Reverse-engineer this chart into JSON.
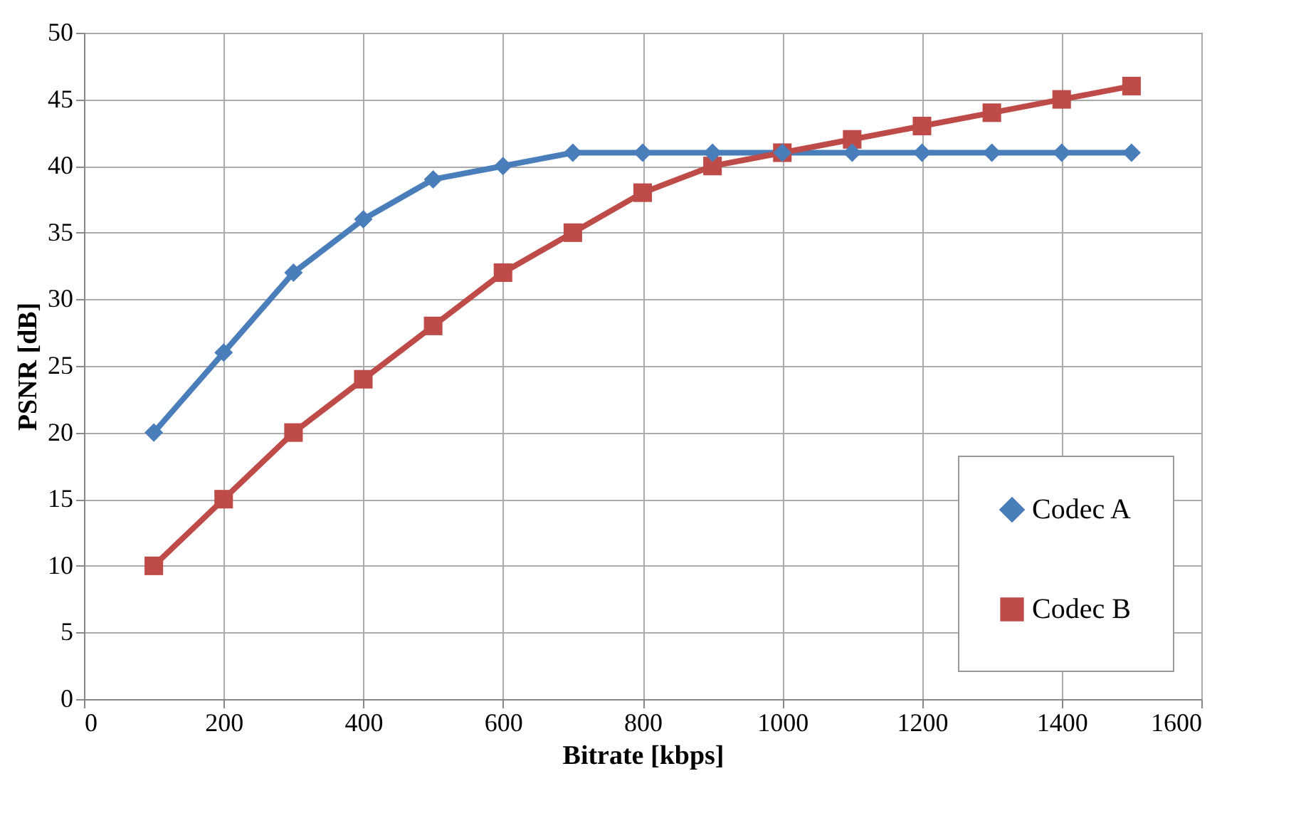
{
  "chart_data": {
    "type": "line",
    "xlabel": "Bitrate [kbps]",
    "ylabel": "PSNR [dB]",
    "x": [
      100,
      200,
      300,
      400,
      500,
      600,
      700,
      800,
      900,
      1000,
      1100,
      1200,
      1300,
      1400,
      1500
    ],
    "series": [
      {
        "name": "Codec A",
        "color": "#4a7ebb",
        "marker": "diamond",
        "values": [
          20,
          26,
          32,
          36,
          39,
          40,
          41,
          41,
          41,
          41,
          41,
          41,
          41,
          41,
          41
        ]
      },
      {
        "name": "Codec B",
        "color": "#be4b48",
        "marker": "square",
        "values": [
          10,
          15,
          20,
          24,
          28,
          32,
          35,
          38,
          40,
          41,
          42,
          43,
          44,
          45,
          46
        ]
      }
    ],
    "xlim": [
      0,
      1600
    ],
    "xticks": [
      0,
      200,
      400,
      600,
      800,
      1000,
      1200,
      1400,
      1600
    ],
    "ylim": [
      0,
      50
    ],
    "yticks": [
      0,
      5,
      10,
      15,
      20,
      25,
      30,
      35,
      40,
      45,
      50
    ],
    "grid": true,
    "legend": "bottom right",
    "line_style": "solid"
  }
}
